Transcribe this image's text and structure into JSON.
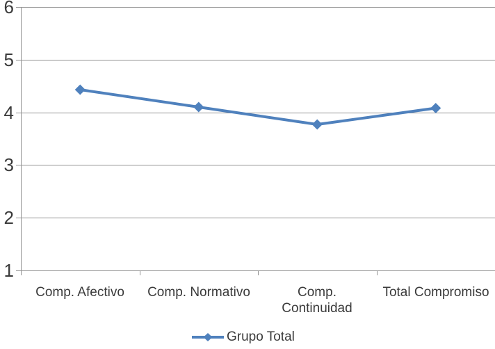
{
  "chart_data": {
    "type": "line",
    "categories": [
      "Comp. Afectivo",
      "Comp. Normativo",
      "Comp. Continuidad",
      "Total Compromiso"
    ],
    "categories_display": [
      [
        "Comp. Afectivo"
      ],
      [
        "Comp. Normativo"
      ],
      [
        "Comp.",
        "Continuidad"
      ],
      [
        "Total Compromiso"
      ]
    ],
    "series": [
      {
        "name": "Grupo Total",
        "values": [
          4.43,
          4.1,
          3.77,
          4.08
        ]
      }
    ],
    "title": "",
    "xlabel": "",
    "ylabel": "",
    "ylim": [
      1,
      6
    ],
    "yticks": [
      1,
      2,
      3,
      4,
      5,
      6
    ],
    "grid": true,
    "marker": "diamond",
    "legend_position": "bottom",
    "colors": {
      "series": "#4F81BD",
      "gridline": "#929292",
      "axis": "#929292",
      "text": "#3A3A3A",
      "background": "#FFFFFF"
    }
  },
  "legend": {
    "label": "Grupo Total"
  }
}
